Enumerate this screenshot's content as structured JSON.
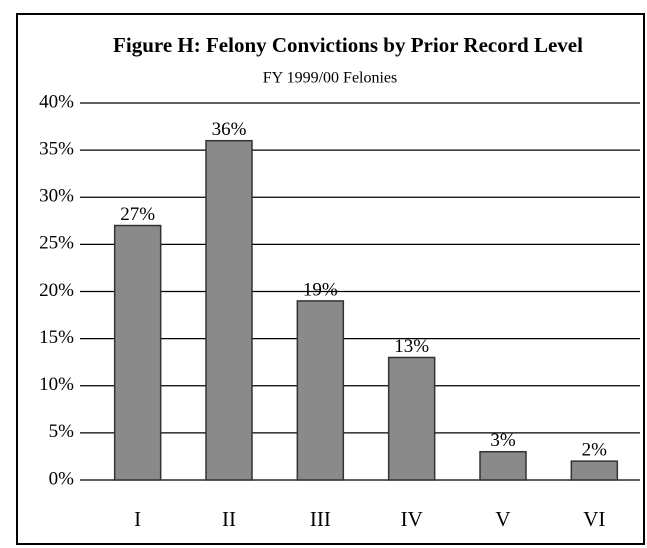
{
  "chart_data": {
    "type": "bar",
    "title": "Figure H:  Felony Convictions by Prior Record Level",
    "subtitle": "FY 1999/00 Felonies",
    "categories": [
      "I",
      "II",
      "III",
      "IV",
      "V",
      "VI"
    ],
    "values": [
      27,
      36,
      19,
      13,
      3,
      2
    ],
    "value_labels": [
      "27%",
      "36%",
      "19%",
      "13%",
      "3%",
      "2%"
    ],
    "color": "#8a8a8a",
    "ylim": [
      0,
      40
    ],
    "yticks": [
      {
        "value": 0,
        "label": "0%"
      },
      {
        "value": 5,
        "label": "5%"
      },
      {
        "value": 10,
        "label": "10%"
      },
      {
        "value": 15,
        "label": "15%"
      },
      {
        "value": 20,
        "label": "20%"
      },
      {
        "value": 25,
        "label": "25%"
      },
      {
        "value": 30,
        "label": "30%"
      },
      {
        "value": 35,
        "label": "35%"
      },
      {
        "value": 40,
        "label": "40%"
      }
    ],
    "grid": true
  }
}
